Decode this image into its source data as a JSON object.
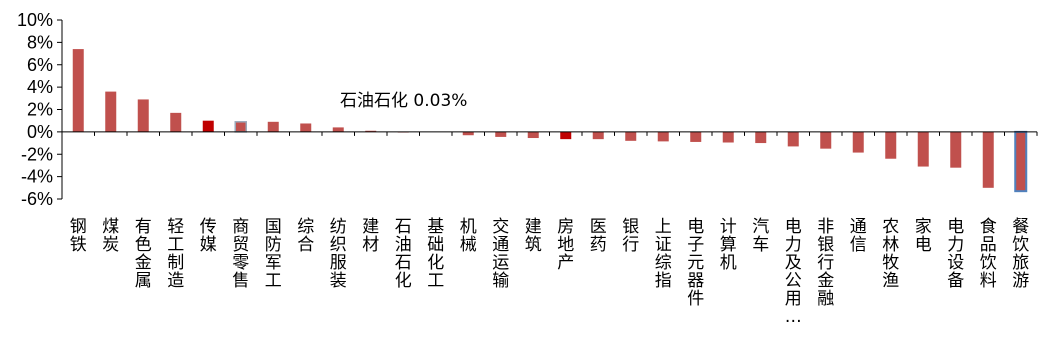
{
  "chart_data": {
    "type": "bar",
    "title": "",
    "xlabel": "",
    "ylabel": "",
    "ylim": [
      -6,
      10
    ],
    "y_ticks": [
      "10%",
      "8%",
      "6%",
      "4%",
      "2%",
      "0%",
      "-2%",
      "-4%",
      "-6%"
    ],
    "y_tick_values": [
      10,
      8,
      6,
      4,
      2,
      0,
      -2,
      -4,
      -6
    ],
    "unit": "%",
    "grid": false,
    "categories": [
      "钢铁",
      "煤炭",
      "有色金属",
      "轻工制造",
      "传媒",
      "商贸零售",
      "国防军工",
      "综合",
      "纺织服装",
      "建材",
      "石油石化",
      "基础化工",
      "机械",
      "交通运输",
      "建筑",
      "房地产",
      "医药",
      "银行",
      "上证综指",
      "电子元器件",
      "计算机",
      "汽车",
      "电力及公用…",
      "非银行金融",
      "通信",
      "农林牧渔",
      "家电",
      "电力设备",
      "食品饮料",
      "餐饮旅游"
    ],
    "values": [
      7.4,
      3.6,
      2.9,
      1.7,
      1.0,
      0.9,
      0.9,
      0.75,
      0.4,
      0.1,
      0.03,
      0.0,
      -0.3,
      -0.45,
      -0.55,
      -0.65,
      -0.65,
      -0.8,
      -0.85,
      -0.9,
      -0.95,
      -1.0,
      -1.3,
      -1.5,
      -1.85,
      -2.4,
      -3.1,
      -3.2,
      -5.0,
      -5.3
    ],
    "highlight_categories": [
      "传媒",
      "房地产"
    ],
    "outlined_categories": [
      "商贸零售",
      "餐饮旅游"
    ],
    "annotation": {
      "category": "石油石化",
      "text": "石油石化 0.03%"
    },
    "colors": {
      "bar": "#c0504d",
      "highlight": "#c00000",
      "outline_blue": "#4f81bd",
      "outline_grey": "#9aa7b8",
      "axis": "#000000"
    }
  }
}
